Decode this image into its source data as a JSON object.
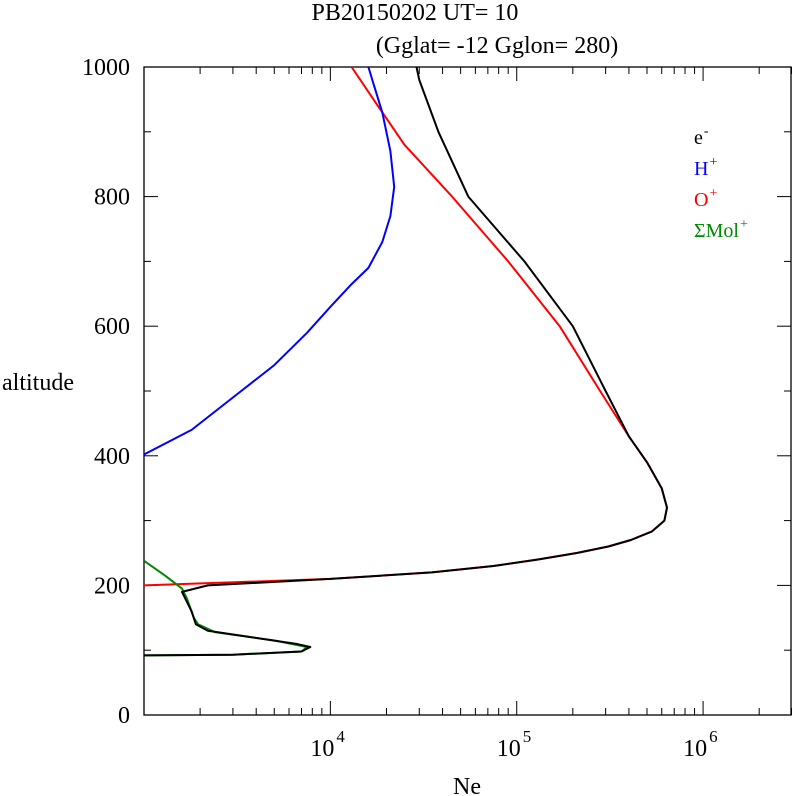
{
  "chart_data": {
    "type": "line",
    "title": "PB20150202   UT=  10",
    "subtitle": "(Gglat= -12   Gglon=  280)",
    "xlabel": "Ne",
    "ylabel": "altitude",
    "x_scale": "log",
    "xlim": [
      1000,
      3000000
    ],
    "ylim": [
      0,
      1000
    ],
    "x_ticks": [
      {
        "value": 10000,
        "base": "10",
        "exp": "4"
      },
      {
        "value": 100000,
        "base": "10",
        "exp": "5"
      },
      {
        "value": 1000000,
        "base": "10",
        "exp": "6"
      }
    ],
    "y_ticks": [
      "0",
      "200",
      "400",
      "600",
      "800",
      "1000"
    ],
    "grid": false,
    "legend_position": "top-right",
    "series": [
      {
        "name": "O+",
        "color": "#ff0000",
        "points": [
          [
            1000,
            200
          ],
          [
            10000,
            210
          ],
          [
            35000,
            220
          ],
          [
            75000,
            230
          ],
          [
            130000,
            240
          ],
          [
            210000,
            250
          ],
          [
            310000,
            260
          ],
          [
            410000,
            270
          ],
          [
            530000,
            283
          ],
          [
            620000,
            300
          ],
          [
            640000,
            320
          ],
          [
            600000,
            350
          ],
          [
            500000,
            390
          ],
          [
            400000,
            430
          ],
          [
            280000,
            500
          ],
          [
            170000,
            600
          ],
          [
            90000,
            700
          ],
          [
            45000,
            800
          ],
          [
            25000,
            880
          ],
          [
            18000,
            940
          ],
          [
            13000,
            1000
          ]
        ]
      },
      {
        "name": "H+",
        "color": "#0000ff",
        "points": [
          [
            1000,
            402
          ],
          [
            1800,
            440
          ],
          [
            3000,
            490
          ],
          [
            5000,
            540
          ],
          [
            7500,
            590
          ],
          [
            10000,
            630
          ],
          [
            13000,
            665
          ],
          [
            16000,
            690
          ],
          [
            19000,
            730
          ],
          [
            21000,
            770
          ],
          [
            22000,
            815
          ],
          [
            21000,
            870
          ],
          [
            19000,
            930
          ],
          [
            17000,
            975
          ],
          [
            16000,
            1000
          ]
        ]
      },
      {
        "name": "ΣMol+",
        "color": "#008800",
        "points": [
          [
            1000,
            238
          ],
          [
            1300,
            215
          ],
          [
            1600,
            195
          ],
          [
            1700,
            180
          ],
          [
            1850,
            150
          ],
          [
            1950,
            140
          ],
          [
            2400,
            128
          ],
          [
            5000,
            115
          ],
          [
            7500,
            105
          ],
          [
            7000,
            98
          ],
          [
            3000,
            93
          ],
          [
            1000,
            92
          ]
        ]
      },
      {
        "name": "e-",
        "color": "#000000",
        "points": [
          [
            1000,
            92
          ],
          [
            3000,
            93
          ],
          [
            7000,
            98
          ],
          [
            7800,
            105
          ],
          [
            6500,
            110
          ],
          [
            2200,
            130
          ],
          [
            1900,
            140
          ],
          [
            1800,
            160
          ],
          [
            1600,
            190
          ],
          [
            2200,
            200
          ],
          [
            10000,
            210
          ],
          [
            35000,
            220
          ],
          [
            75000,
            230
          ],
          [
            130000,
            240
          ],
          [
            210000,
            250
          ],
          [
            310000,
            260
          ],
          [
            410000,
            270
          ],
          [
            530000,
            283
          ],
          [
            620000,
            300
          ],
          [
            640000,
            320
          ],
          [
            600000,
            350
          ],
          [
            500000,
            390
          ],
          [
            400000,
            430
          ],
          [
            300000,
            500
          ],
          [
            200000,
            600
          ],
          [
            110000,
            700
          ],
          [
            55000,
            800
          ],
          [
            38000,
            900
          ],
          [
            30000,
            980
          ],
          [
            29000,
            1000
          ]
        ]
      }
    ],
    "legend": [
      {
        "base": "e",
        "sup": "-",
        "color": "#000000"
      },
      {
        "base": "H",
        "sup": "+",
        "color": "#0000ff"
      },
      {
        "base": "O",
        "sup": "+",
        "color": "#ff0000"
      },
      {
        "base": "ΣMol",
        "sup": "+",
        "color": "#008800"
      }
    ]
  }
}
